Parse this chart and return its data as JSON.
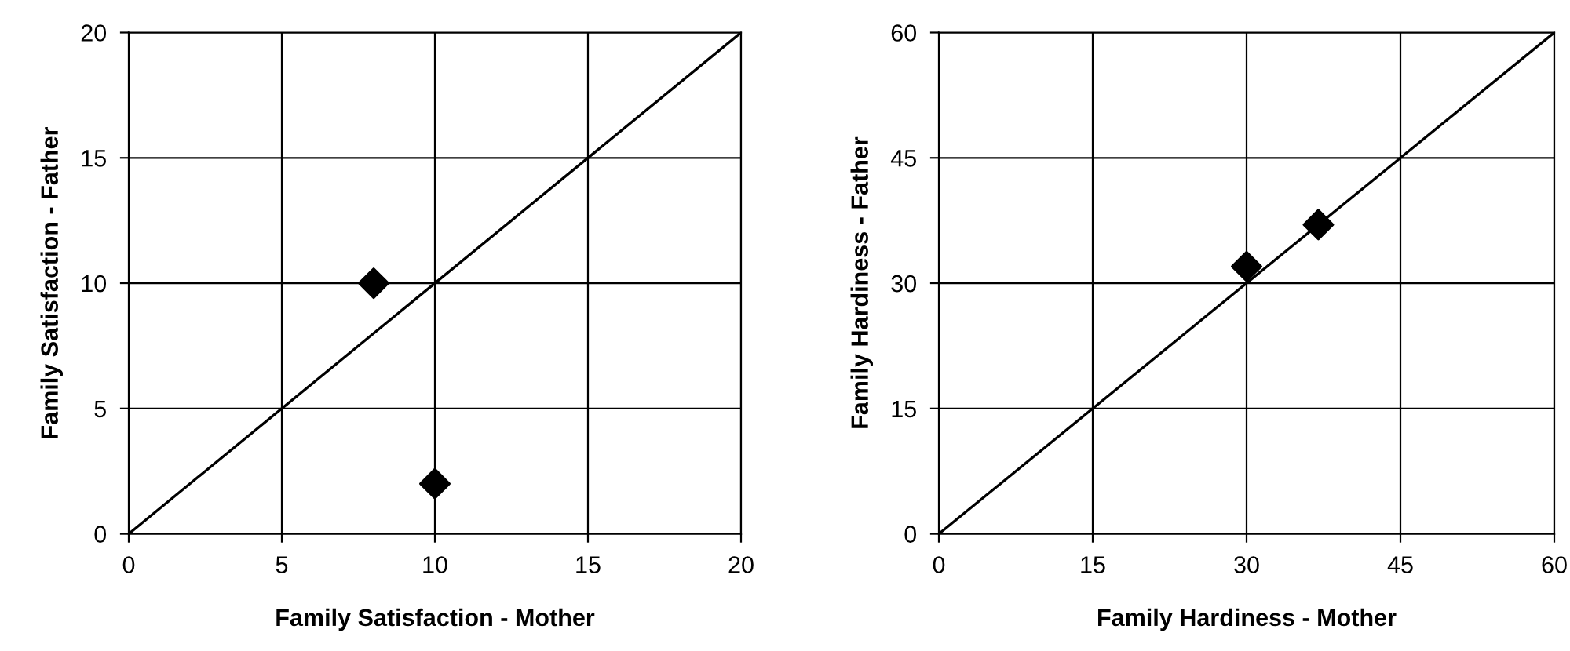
{
  "chart_data": [
    {
      "type": "scatter",
      "xlabel": "Family Satisfaction - Mother",
      "ylabel": "Family Satisfaction - Father",
      "xlim": [
        0,
        20
      ],
      "ylim": [
        0,
        20
      ],
      "xticks": [
        0,
        5,
        10,
        15,
        20
      ],
      "yticks": [
        0,
        5,
        10,
        15,
        20
      ],
      "grid": true,
      "legend": false,
      "marker": "diamond",
      "series": [
        {
          "color": "#000000",
          "x": [
            8,
            10
          ],
          "values": [
            10,
            2
          ]
        },
        {
          "type": "line",
          "color": "#000000",
          "marker": "none",
          "line_style": "solid",
          "x": [
            0,
            20
          ],
          "values": [
            0,
            20
          ]
        }
      ]
    },
    {
      "type": "scatter",
      "xlabel": "Family Hardiness - Mother",
      "ylabel": "Family Hardiness - Father",
      "xlim": [
        0,
        60
      ],
      "ylim": [
        0,
        60
      ],
      "xticks": [
        0,
        15,
        30,
        45,
        60
      ],
      "yticks": [
        0,
        15,
        30,
        45,
        60
      ],
      "grid": true,
      "legend": false,
      "marker": "diamond",
      "series": [
        {
          "color": "#000000",
          "x": [
            30,
            37
          ],
          "values": [
            32,
            37
          ]
        },
        {
          "type": "line",
          "color": "#000000",
          "marker": "none",
          "line_style": "solid",
          "x": [
            0,
            60
          ],
          "values": [
            0,
            60
          ]
        }
      ]
    }
  ]
}
